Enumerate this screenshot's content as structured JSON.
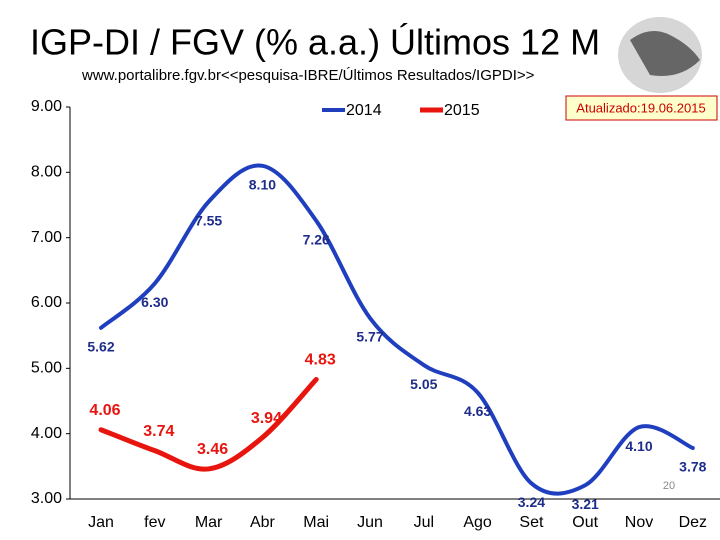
{
  "chart_data": {
    "type": "line",
    "title": "IGP-DI / FGV (% a.a.) Últimos 12 M",
    "subtitle": "www.portalibre.fgv.br<<pesquisa-IBRE/Últimos Resultados/IGPDI>>",
    "annotation": "Atualizado:19.06.2015",
    "page_number": "20",
    "categories": [
      "Jan",
      "fev",
      "Mar",
      "Abr",
      "Mai",
      "Jun",
      "Jul",
      "Ago",
      "Set",
      "Out",
      "Nov",
      "Dez"
    ],
    "series": [
      {
        "name": "2014",
        "color": "#1f3fbf",
        "values": [
          5.62,
          6.3,
          7.55,
          8.1,
          7.26,
          5.77,
          5.05,
          4.63,
          3.24,
          3.21,
          4.1,
          3.78
        ],
        "value_labels": [
          "5.62",
          "6.30",
          "7.55",
          "8.10",
          "7.26",
          "5.77",
          "5.05",
          "4.63",
          "3.24",
          "3.21",
          "4.10",
          "3.78"
        ]
      },
      {
        "name": "2015",
        "color": "#e8150f",
        "values": [
          4.06,
          3.74,
          3.46,
          3.94,
          4.83,
          null,
          null,
          null,
          null,
          null,
          null,
          null
        ],
        "value_labels": [
          "4.06",
          "3.74",
          "3.46",
          "3.94",
          "4.83",
          null,
          null,
          null,
          null,
          null,
          null,
          null
        ]
      }
    ],
    "ylim": [
      3,
      9
    ],
    "yticks": [
      {
        "value": 3,
        "label": "3.00"
      },
      {
        "value": 4,
        "label": "4.00"
      },
      {
        "value": 5,
        "label": "5.00"
      },
      {
        "value": 6,
        "label": "6.00"
      },
      {
        "value": 7,
        "label": "7.00"
      },
      {
        "value": 8,
        "label": "8.00"
      },
      {
        "value": 9,
        "label": "9.00"
      }
    ],
    "grid": false
  }
}
